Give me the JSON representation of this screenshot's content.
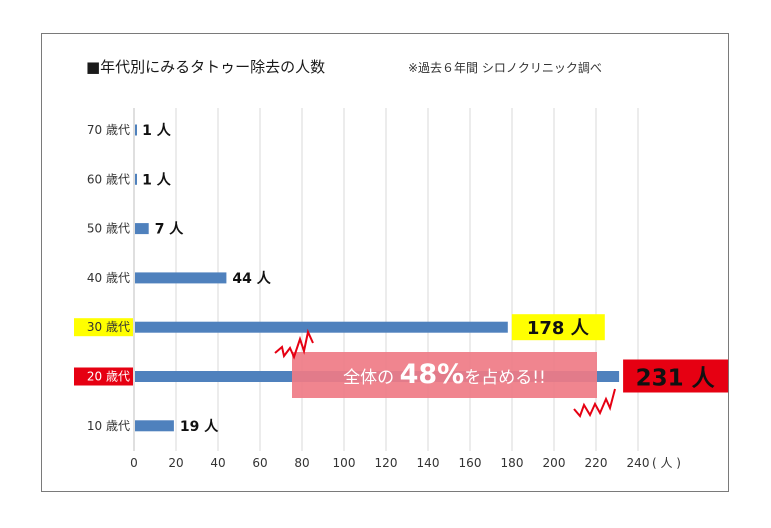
{
  "chart_data": {
    "type": "bar",
    "orientation": "horizontal",
    "title": "■年代別にみるタトゥー除去の人数",
    "note": "※過去６年間 シロノクリニック調べ",
    "categories": [
      "70 歳代",
      "60 歳代",
      "50 歳代",
      "40 歳代",
      "30 歳代",
      "20 歳代",
      "10 歳代"
    ],
    "values": [
      1,
      1,
      7,
      44,
      178,
      231,
      19
    ],
    "value_labels": [
      "1 人",
      "1 人",
      "7 人",
      "44 人",
      "178 人",
      "231 人",
      "19 人"
    ],
    "xlim": [
      0,
      240
    ],
    "xticks": [
      "0",
      "20",
      "40",
      "60",
      "80",
      "100",
      "120",
      "140",
      "160",
      "180",
      "200",
      "220",
      "240"
    ],
    "xunit": "( 人 )",
    "grid": true,
    "callout": {
      "prefix": "全体の",
      "highlight": "48%",
      "suffix": "を占める!!"
    },
    "colors": {
      "bar": "#4f81bd",
      "highlight_yellow": "#ffff00",
      "highlight_red": "#e60012",
      "callout_bg": "#ef7b86",
      "grid": "#d9d9d9"
    }
  }
}
